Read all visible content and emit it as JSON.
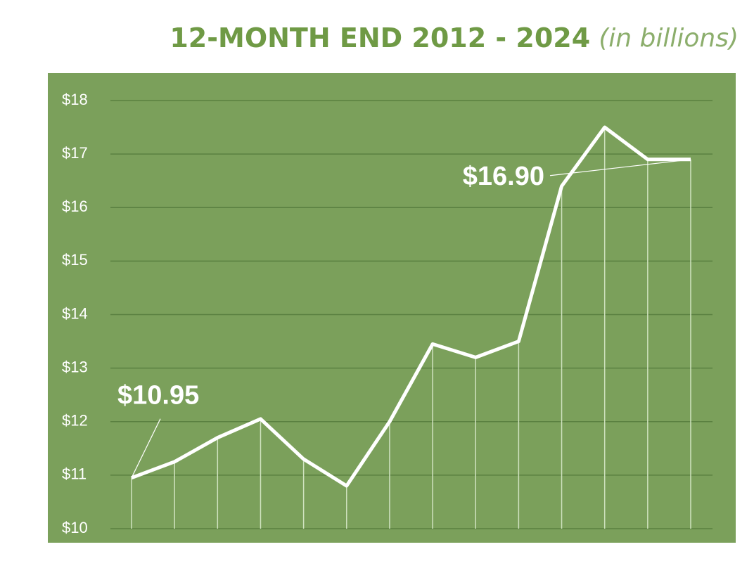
{
  "chart_data": {
    "type": "line",
    "title": "12-MONTH END 2012 - 2024",
    "subtitle": "(in billions)",
    "categories": [
      null,
      null,
      null,
      null,
      null,
      null,
      null,
      null,
      null,
      null,
      null,
      null,
      null,
      null
    ],
    "values": [
      10.95,
      11.25,
      11.7,
      12.05,
      11.3,
      10.8,
      12.0,
      13.45,
      13.2,
      13.5,
      16.4,
      17.5,
      16.9,
      16.9
    ],
    "value_labels": [
      "$10.95",
      null,
      null,
      null,
      null,
      null,
      null,
      null,
      null,
      null,
      null,
      null,
      null,
      "$16.90"
    ],
    "color": "#ffffff",
    "background": "#7ba05b",
    "ylim": [
      10,
      18
    ],
    "yticks": [
      {
        "value": 10,
        "label": "$10"
      },
      {
        "value": 11,
        "label": "$11"
      },
      {
        "value": 12,
        "label": "$12"
      },
      {
        "value": 13,
        "label": "$13"
      },
      {
        "value": 14,
        "label": "$14"
      },
      {
        "value": 15,
        "label": "$15"
      },
      {
        "value": 16,
        "label": "$16"
      },
      {
        "value": 17,
        "label": "$17"
      },
      {
        "value": 18,
        "label": "$18"
      }
    ],
    "grid": true
  }
}
